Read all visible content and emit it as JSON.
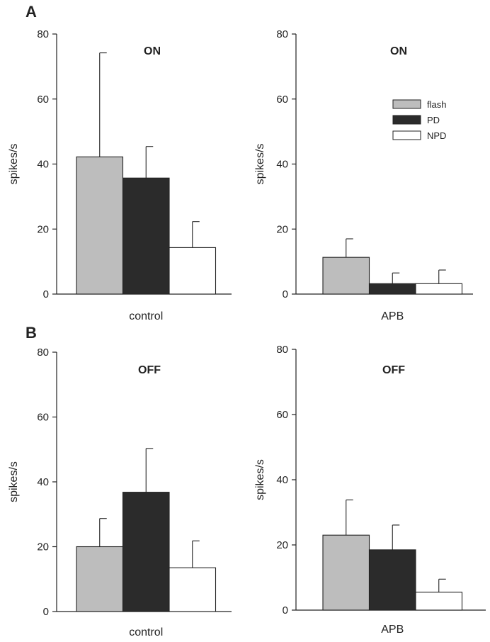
{
  "panel_labels": [
    "A",
    "B"
  ],
  "colors": {
    "flash": "#bdbdbd",
    "PD": "#2b2b2b",
    "NPD": "#ffffff",
    "axis": "#222222"
  },
  "legend": {
    "entries": [
      "flash",
      "PD",
      "NPD"
    ],
    "placement": "top-right of APB ON chart"
  },
  "chart_data": [
    {
      "type": "bar",
      "title": "ON",
      "ylabel": "spikes/s",
      "category": "control",
      "ylim": [
        0,
        80
      ],
      "yticks": [
        0,
        20,
        40,
        60,
        80
      ],
      "series": [
        {
          "name": "flash",
          "value": 42.2,
          "error": 32.0
        },
        {
          "name": "PD",
          "value": 35.7,
          "error": 9.7
        },
        {
          "name": "NPD",
          "value": 14.3,
          "error": 8.0
        }
      ]
    },
    {
      "type": "bar",
      "title": "ON",
      "ylabel": "spikes/s",
      "category": "APB",
      "ylim": [
        0,
        80
      ],
      "yticks": [
        0,
        20,
        40,
        60,
        80
      ],
      "series": [
        {
          "name": "flash",
          "value": 11.3,
          "error": 5.7
        },
        {
          "name": "PD",
          "value": 3.2,
          "error": 3.3
        },
        {
          "name": "NPD",
          "value": 3.2,
          "error": 4.2
        }
      ]
    },
    {
      "type": "bar",
      "title": "OFF",
      "ylabel": "spikes/s",
      "category": "control",
      "ylim": [
        0,
        80
      ],
      "yticks": [
        0,
        20,
        40,
        60,
        80
      ],
      "series": [
        {
          "name": "flash",
          "value": 20.0,
          "error": 8.7
        },
        {
          "name": "PD",
          "value": 36.8,
          "error": 13.5
        },
        {
          "name": "NPD",
          "value": 13.5,
          "error": 8.3
        }
      ]
    },
    {
      "type": "bar",
      "title": "OFF",
      "ylabel": "spikes/s",
      "category": "APB",
      "ylim": [
        0,
        80
      ],
      "yticks": [
        0,
        20,
        40,
        60,
        80
      ],
      "series": [
        {
          "name": "flash",
          "value": 23.0,
          "error": 10.8
        },
        {
          "name": "PD",
          "value": 18.5,
          "error": 7.6
        },
        {
          "name": "NPD",
          "value": 5.5,
          "error": 4.0
        }
      ]
    }
  ]
}
